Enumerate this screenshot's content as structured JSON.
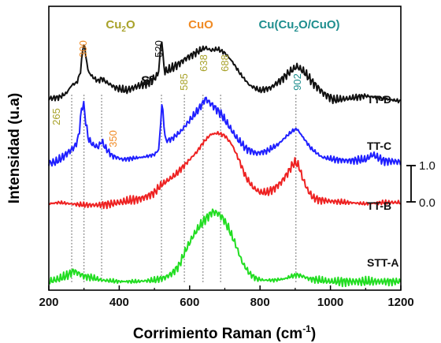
{
  "chart_data": {
    "type": "line",
    "xlabel": "Corrimiento Raman (cm",
    "xlabel_sup": "-1",
    "xlabel_end": ")",
    "ylabel": "Intensidad (u.a)",
    "xlim": [
      200,
      1200
    ],
    "x_ticks": [
      "200",
      "400",
      "600",
      "800",
      "1000",
      "1200"
    ],
    "grid": false,
    "legend": "none",
    "phase_labels": [
      {
        "text": "Cu",
        "sub": "2",
        "tail": "O",
        "color": "#a8a22a",
        "x": 350
      },
      {
        "text": "CuO",
        "sub": "",
        "tail": "",
        "color": "#f08a24",
        "x": 595
      },
      {
        "text": "Cu(Cu",
        "sub": "2",
        "tail": "O/CuO)",
        "color": "#1e8e8e",
        "x": 870
      }
    ],
    "si_label": "Si",
    "peaks": [
      {
        "label": "265",
        "x": 265,
        "color": "#a8a22a"
      },
      {
        "label": "300",
        "x": 300,
        "color": "#f08a24"
      },
      {
        "label": "350",
        "x": 350,
        "color": "#f08a24"
      },
      {
        "label": "520",
        "x": 520,
        "color": "#111111"
      },
      {
        "label": "585",
        "x": 585,
        "color": "#a8a22a"
      },
      {
        "label": "638",
        "x": 638,
        "color": "#a8a22a"
      },
      {
        "label": "688",
        "x": 688,
        "color": "#a8a22a"
      },
      {
        "label": "902",
        "x": 902,
        "color": "#1e8e8e"
      }
    ],
    "scale_bar": {
      "top": "1.0",
      "bottom": "0.0"
    },
    "series": [
      {
        "name": "TT-D",
        "color": "#111111",
        "x": [
          200,
          230,
          250,
          265,
          280,
          290,
          295,
          300,
          305,
          312,
          325,
          340,
          350,
          365,
          390,
          420,
          450,
          480,
          500,
          510,
          515,
          520,
          525,
          530,
          545,
          570,
          590,
          610,
          630,
          645,
          660,
          680,
          700,
          720,
          745,
          770,
          800,
          830,
          860,
          885,
          905,
          925,
          950,
          980,
          1010,
          1050,
          1100,
          1150,
          1200
        ],
        "y": [
          0.1,
          0.11,
          0.14,
          0.2,
          0.22,
          0.3,
          0.44,
          0.52,
          0.42,
          0.3,
          0.26,
          0.23,
          0.25,
          0.22,
          0.18,
          0.16,
          0.19,
          0.22,
          0.25,
          0.28,
          0.38,
          0.58,
          0.38,
          0.3,
          0.32,
          0.36,
          0.4,
          0.43,
          0.46,
          0.48,
          0.46,
          0.47,
          0.44,
          0.38,
          0.28,
          0.2,
          0.16,
          0.18,
          0.24,
          0.3,
          0.34,
          0.3,
          0.22,
          0.14,
          0.09,
          0.1,
          0.12,
          0.1,
          0.08
        ]
      },
      {
        "name": "TT-C",
        "color": "#1f1fff",
        "x": [
          200,
          220,
          240,
          260,
          275,
          285,
          292,
          298,
          304,
          312,
          325,
          340,
          350,
          362,
          380,
          410,
          440,
          470,
          500,
          512,
          518,
          522,
          526,
          532,
          550,
          575,
          600,
          620,
          635,
          645,
          655,
          670,
          690,
          710,
          735,
          760,
          790,
          820,
          850,
          875,
          895,
          905,
          920,
          945,
          975,
          1010,
          1050,
          1100,
          1120,
          1150,
          1200
        ],
        "y": [
          0.02,
          0.03,
          0.07,
          0.12,
          0.16,
          0.24,
          0.44,
          0.52,
          0.38,
          0.22,
          0.17,
          0.15,
          0.2,
          0.14,
          0.08,
          0.05,
          0.06,
          0.07,
          0.09,
          0.13,
          0.35,
          0.55,
          0.35,
          0.2,
          0.22,
          0.28,
          0.37,
          0.44,
          0.5,
          0.55,
          0.52,
          0.48,
          0.42,
          0.33,
          0.22,
          0.14,
          0.1,
          0.12,
          0.17,
          0.24,
          0.29,
          0.3,
          0.24,
          0.14,
          0.07,
          0.05,
          0.04,
          0.05,
          0.09,
          0.04,
          0.03
        ]
      },
      {
        "name": "TT-B",
        "color": "#ee2222",
        "x": [
          200,
          230,
          260,
          300,
          340,
          380,
          420,
          460,
          480,
          500,
          520,
          540,
          560,
          580,
          600,
          620,
          640,
          660,
          680,
          700,
          720,
          740,
          760,
          780,
          800,
          820,
          840,
          860,
          880,
          890,
          900,
          910,
          920,
          935,
          950,
          970,
          1000,
          1050,
          1100,
          1150,
          1200
        ],
        "y": [
          0.01,
          0.02,
          0.01,
          0.0,
          0.0,
          0.01,
          0.03,
          0.05,
          0.07,
          0.1,
          0.16,
          0.2,
          0.24,
          0.3,
          0.36,
          0.42,
          0.5,
          0.56,
          0.57,
          0.55,
          0.48,
          0.36,
          0.22,
          0.14,
          0.1,
          0.1,
          0.13,
          0.18,
          0.26,
          0.31,
          0.34,
          0.31,
          0.22,
          0.12,
          0.06,
          0.04,
          0.03,
          0.02,
          0.01,
          0.02,
          0.02
        ]
      },
      {
        "name": "STT-A",
        "color": "#22dd22",
        "x": [
          200,
          230,
          255,
          270,
          285,
          300,
          320,
          350,
          400,
          450,
          500,
          530,
          550,
          570,
          590,
          610,
          630,
          650,
          665,
          680,
          695,
          710,
          730,
          750,
          770,
          790,
          810,
          840,
          870,
          890,
          905,
          920,
          940,
          970,
          1000,
          1050,
          1100,
          1150,
          1200
        ],
        "y": [
          0.0,
          0.02,
          0.05,
          0.08,
          0.06,
          0.04,
          0.03,
          0.01,
          0.0,
          0.0,
          0.01,
          0.03,
          0.06,
          0.12,
          0.24,
          0.34,
          0.42,
          0.48,
          0.52,
          0.51,
          0.47,
          0.4,
          0.28,
          0.14,
          0.06,
          0.02,
          0.01,
          0.01,
          0.02,
          0.04,
          0.05,
          0.04,
          0.02,
          0.01,
          0.0,
          0.0,
          0.0,
          0.0,
          0.0
        ]
      }
    ]
  }
}
